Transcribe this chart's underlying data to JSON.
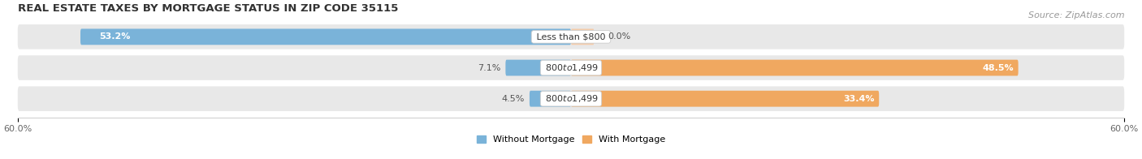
{
  "title": "REAL ESTATE TAXES BY MORTGAGE STATUS IN ZIP CODE 35115",
  "source": "Source: ZipAtlas.com",
  "rows": [
    {
      "label": "Less than $800",
      "without": 53.2,
      "with": 0.0
    },
    {
      "label": "$800 to $1,499",
      "without": 7.1,
      "with": 48.5
    },
    {
      "label": "$800 to $1,499",
      "without": 4.5,
      "with": 33.4
    }
  ],
  "xlim": 60.0,
  "color_without": "#7ab3d9",
  "color_with": "#f0a860",
  "color_with_light": "#f5ccaa",
  "bg_bar": "#e8e8e8",
  "legend_without": "Without Mortgage",
  "legend_with": "With Mortgage",
  "title_fontsize": 9.5,
  "source_fontsize": 8,
  "label_fontsize": 8,
  "value_fontsize": 8,
  "axis_label_fontsize": 8,
  "bar_height": 0.52
}
